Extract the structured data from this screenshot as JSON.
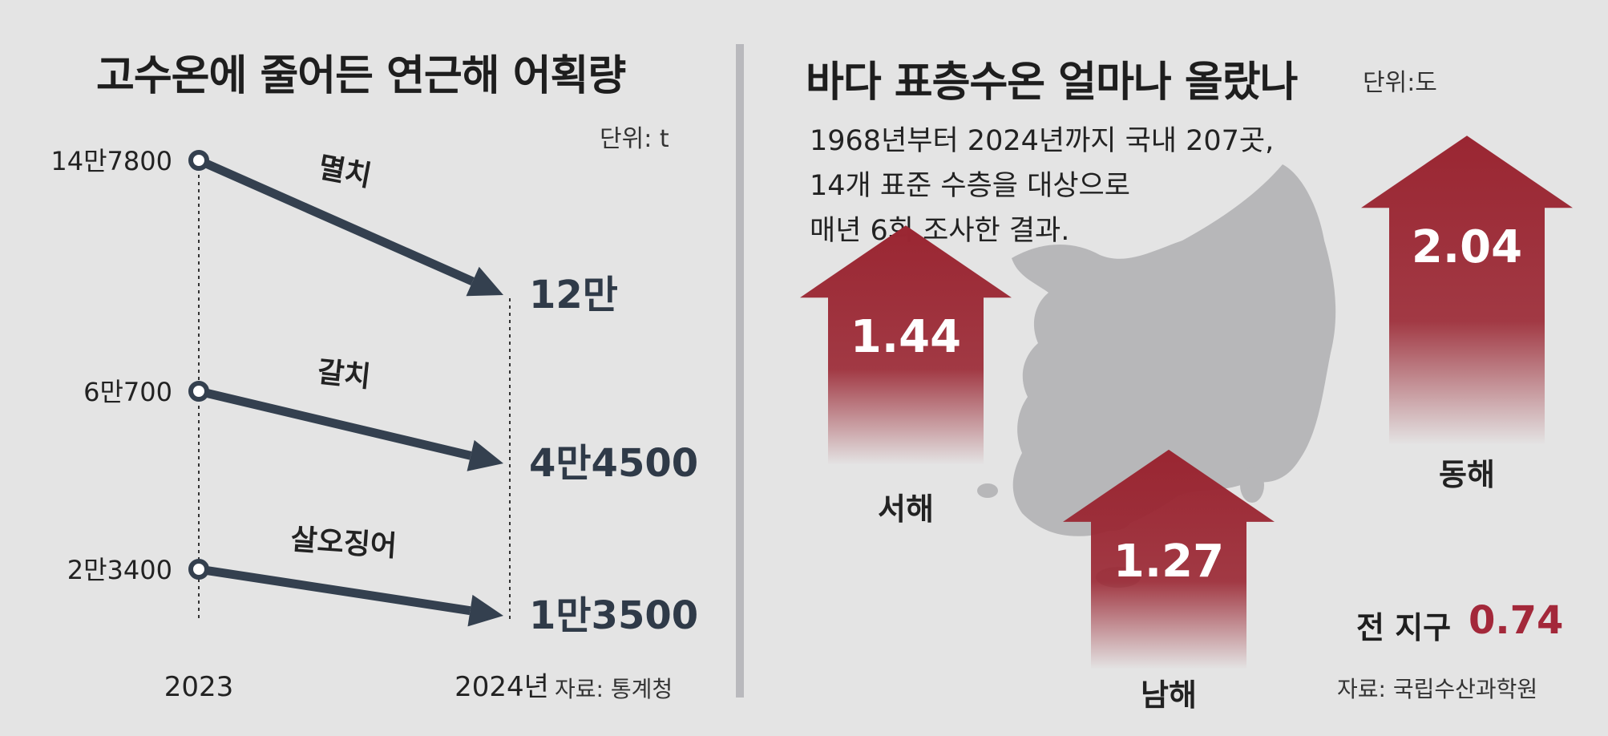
{
  "left_panel": {
    "title": "고수온에 줄어든 연근해 어획량",
    "unit": "단위: t",
    "source": "자료: 통계청"
  },
  "right_panel": {
    "title": "바다 표층수온 얼마나 올랐나",
    "unit": "단위:도",
    "description": [
      "1968년부터 2024년까지 국내 207곳,",
      "14개 표준 수층을 대상으로",
      "매년 6회 조사한 결과."
    ],
    "global_label": "전 지구",
    "global_value": "0.74",
    "source": "자료: 국립수산과학원"
  },
  "colors": {
    "arrow_line": "#34404f",
    "red_arrow": "#9a2632",
    "accent_text": "#a3283a",
    "map": "#b7b7b9"
  },
  "chart_data": [
    {
      "type": "line",
      "title": "고수온에 줄어든 연근해 어획량",
      "unit": "t",
      "x": [
        "2023",
        "2024년"
      ],
      "series": [
        {
          "name": "멸치",
          "values": [
            147800,
            120000
          ],
          "labels": [
            "14만7800",
            "12만"
          ]
        },
        {
          "name": "갈치",
          "values": [
            60700,
            44500
          ],
          "labels": [
            "6만700",
            "4만4500"
          ]
        },
        {
          "name": "살오징어",
          "values": [
            23400,
            13500
          ],
          "labels": [
            "2만3400",
            "1만3500"
          ]
        }
      ]
    },
    {
      "type": "bar",
      "title": "바다 표층수온 얼마나 올랐나",
      "unit": "도",
      "categories": [
        "서해",
        "남해",
        "동해"
      ],
      "values": [
        1.44,
        1.27,
        2.04
      ],
      "labels": [
        "1.44",
        "1.27",
        "2.04"
      ]
    }
  ]
}
